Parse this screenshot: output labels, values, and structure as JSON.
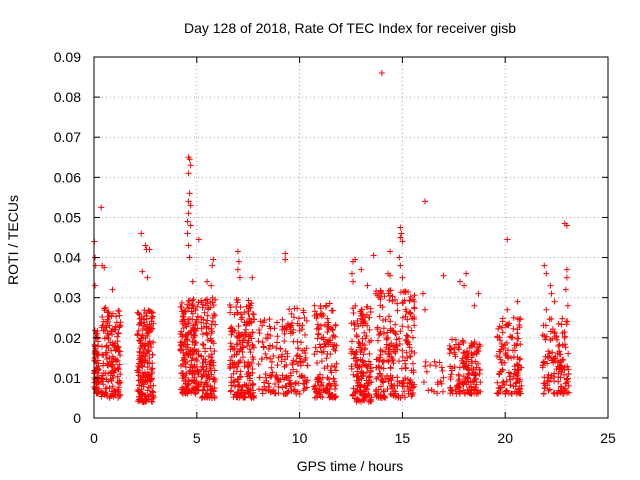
{
  "chart_data": {
    "type": "scatter",
    "title": "Day 128 of 2018, Rate Of TEC Index for receiver gisb",
    "xlabel": "GPS time / hours",
    "ylabel": "ROTI / TECUs",
    "xlim": [
      0,
      25
    ],
    "ylim": [
      0,
      0.09
    ],
    "xticks": [
      0,
      5,
      10,
      15,
      20,
      25
    ],
    "yticks": [
      0,
      0.01,
      0.02,
      0.03,
      0.04,
      0.05,
      0.06,
      0.07,
      0.08,
      0.09
    ],
    "ytick_labels": [
      "0",
      "0.01",
      "0.02",
      "0.03",
      "0.04",
      "0.05",
      "0.06",
      "0.07",
      "0.08",
      "0.09"
    ],
    "grid": true,
    "marker": "+",
    "color": "#ff0000",
    "series": [
      {
        "name": "ROTI",
        "clusters": [
          {
            "x": [
              0.0,
              0.25
            ],
            "y": [
              0.006,
              0.022
            ],
            "n": 70
          },
          {
            "x": [
              0.35,
              1.3
            ],
            "y": [
              0.005,
              0.028
            ],
            "n": 160
          },
          {
            "x": [
              2.1,
              2.9
            ],
            "y": [
              0.004,
              0.027
            ],
            "n": 200
          },
          {
            "x": [
              4.2,
              5.1
            ],
            "y": [
              0.006,
              0.03
            ],
            "n": 200
          },
          {
            "x": [
              5.2,
              5.9
            ],
            "y": [
              0.005,
              0.03
            ],
            "n": 130
          },
          {
            "x": [
              6.6,
              7.8
            ],
            "y": [
              0.005,
              0.03
            ],
            "n": 200
          },
          {
            "x": [
              8.0,
              9.3
            ],
            "y": [
              0.006,
              0.025
            ],
            "n": 90
          },
          {
            "x": [
              9.3,
              10.4
            ],
            "y": [
              0.006,
              0.028
            ],
            "n": 100
          },
          {
            "x": [
              10.7,
              11.8
            ],
            "y": [
              0.005,
              0.029
            ],
            "n": 150
          },
          {
            "x": [
              12.5,
              13.5
            ],
            "y": [
              0.004,
              0.028
            ],
            "n": 170
          },
          {
            "x": [
              13.7,
              15.6
            ],
            "y": [
              0.005,
              0.032
            ],
            "n": 240
          },
          {
            "x": [
              16.0,
              17.0
            ],
            "y": [
              0.006,
              0.015
            ],
            "n": 20
          },
          {
            "x": [
              17.3,
              18.8
            ],
            "y": [
              0.006,
              0.02
            ],
            "n": 160
          },
          {
            "x": [
              19.6,
              20.8
            ],
            "y": [
              0.006,
              0.025
            ],
            "n": 130
          },
          {
            "x": [
              21.8,
              23.1
            ],
            "y": [
              0.006,
              0.025
            ],
            "n": 130
          }
        ],
        "outliers": [
          {
            "x": 0.02,
            "y": 0.044
          },
          {
            "x": 0.05,
            "y": 0.04
          },
          {
            "x": 0.08,
            "y": 0.038
          },
          {
            "x": 0.05,
            "y": 0.033
          },
          {
            "x": 0.35,
            "y": 0.0525
          },
          {
            "x": 0.4,
            "y": 0.038
          },
          {
            "x": 0.5,
            "y": 0.0375
          },
          {
            "x": 0.9,
            "y": 0.032
          },
          {
            "x": 2.3,
            "y": 0.046
          },
          {
            "x": 2.5,
            "y": 0.043
          },
          {
            "x": 2.55,
            "y": 0.042
          },
          {
            "x": 2.7,
            "y": 0.042
          },
          {
            "x": 2.35,
            "y": 0.0365
          },
          {
            "x": 2.6,
            "y": 0.035
          },
          {
            "x": 4.6,
            "y": 0.065
          },
          {
            "x": 4.65,
            "y": 0.0645
          },
          {
            "x": 4.7,
            "y": 0.063
          },
          {
            "x": 4.6,
            "y": 0.061
          },
          {
            "x": 4.65,
            "y": 0.056
          },
          {
            "x": 4.6,
            "y": 0.054
          },
          {
            "x": 4.7,
            "y": 0.053
          },
          {
            "x": 4.6,
            "y": 0.051
          },
          {
            "x": 4.55,
            "y": 0.049
          },
          {
            "x": 4.7,
            "y": 0.048
          },
          {
            "x": 4.55,
            "y": 0.046
          },
          {
            "x": 4.6,
            "y": 0.043
          },
          {
            "x": 4.65,
            "y": 0.04
          },
          {
            "x": 5.1,
            "y": 0.0445
          },
          {
            "x": 4.8,
            "y": 0.034
          },
          {
            "x": 5.8,
            "y": 0.0395
          },
          {
            "x": 5.75,
            "y": 0.038
          },
          {
            "x": 5.5,
            "y": 0.034
          },
          {
            "x": 5.7,
            "y": 0.033
          },
          {
            "x": 7.0,
            "y": 0.0415
          },
          {
            "x": 7.05,
            "y": 0.039
          },
          {
            "x": 7.0,
            "y": 0.037
          },
          {
            "x": 7.1,
            "y": 0.035
          },
          {
            "x": 7.7,
            "y": 0.035
          },
          {
            "x": 9.3,
            "y": 0.041
          },
          {
            "x": 9.3,
            "y": 0.0395
          },
          {
            "x": 12.6,
            "y": 0.039
          },
          {
            "x": 12.7,
            "y": 0.0395
          },
          {
            "x": 12.55,
            "y": 0.036
          },
          {
            "x": 12.6,
            "y": 0.034
          },
          {
            "x": 13.0,
            "y": 0.037
          },
          {
            "x": 13.6,
            "y": 0.0405
          },
          {
            "x": 13.3,
            "y": 0.033
          },
          {
            "x": 14.0,
            "y": 0.086
          },
          {
            "x": 14.4,
            "y": 0.0415
          },
          {
            "x": 14.3,
            "y": 0.036
          },
          {
            "x": 14.4,
            "y": 0.0355
          },
          {
            "x": 14.9,
            "y": 0.0475
          },
          {
            "x": 14.95,
            "y": 0.046
          },
          {
            "x": 14.9,
            "y": 0.045
          },
          {
            "x": 15.0,
            "y": 0.044
          },
          {
            "x": 14.85,
            "y": 0.04
          },
          {
            "x": 14.9,
            "y": 0.038
          },
          {
            "x": 15.0,
            "y": 0.035
          },
          {
            "x": 16.1,
            "y": 0.054
          },
          {
            "x": 16.0,
            "y": 0.031
          },
          {
            "x": 16.1,
            "y": 0.027
          },
          {
            "x": 17.0,
            "y": 0.0355
          },
          {
            "x": 17.8,
            "y": 0.034
          },
          {
            "x": 18.1,
            "y": 0.036
          },
          {
            "x": 18.0,
            "y": 0.033
          },
          {
            "x": 18.7,
            "y": 0.031
          },
          {
            "x": 18.5,
            "y": 0.028
          },
          {
            "x": 20.1,
            "y": 0.0445
          },
          {
            "x": 20.1,
            "y": 0.027
          },
          {
            "x": 20.6,
            "y": 0.029
          },
          {
            "x": 21.9,
            "y": 0.038
          },
          {
            "x": 22.0,
            "y": 0.036
          },
          {
            "x": 22.2,
            "y": 0.033
          },
          {
            "x": 22.25,
            "y": 0.031
          },
          {
            "x": 22.4,
            "y": 0.029
          },
          {
            "x": 22.0,
            "y": 0.027
          },
          {
            "x": 22.9,
            "y": 0.0485
          },
          {
            "x": 23.0,
            "y": 0.048
          },
          {
            "x": 23.0,
            "y": 0.037
          },
          {
            "x": 23.0,
            "y": 0.035
          },
          {
            "x": 22.95,
            "y": 0.032
          },
          {
            "x": 23.05,
            "y": 0.028
          }
        ]
      }
    ]
  }
}
